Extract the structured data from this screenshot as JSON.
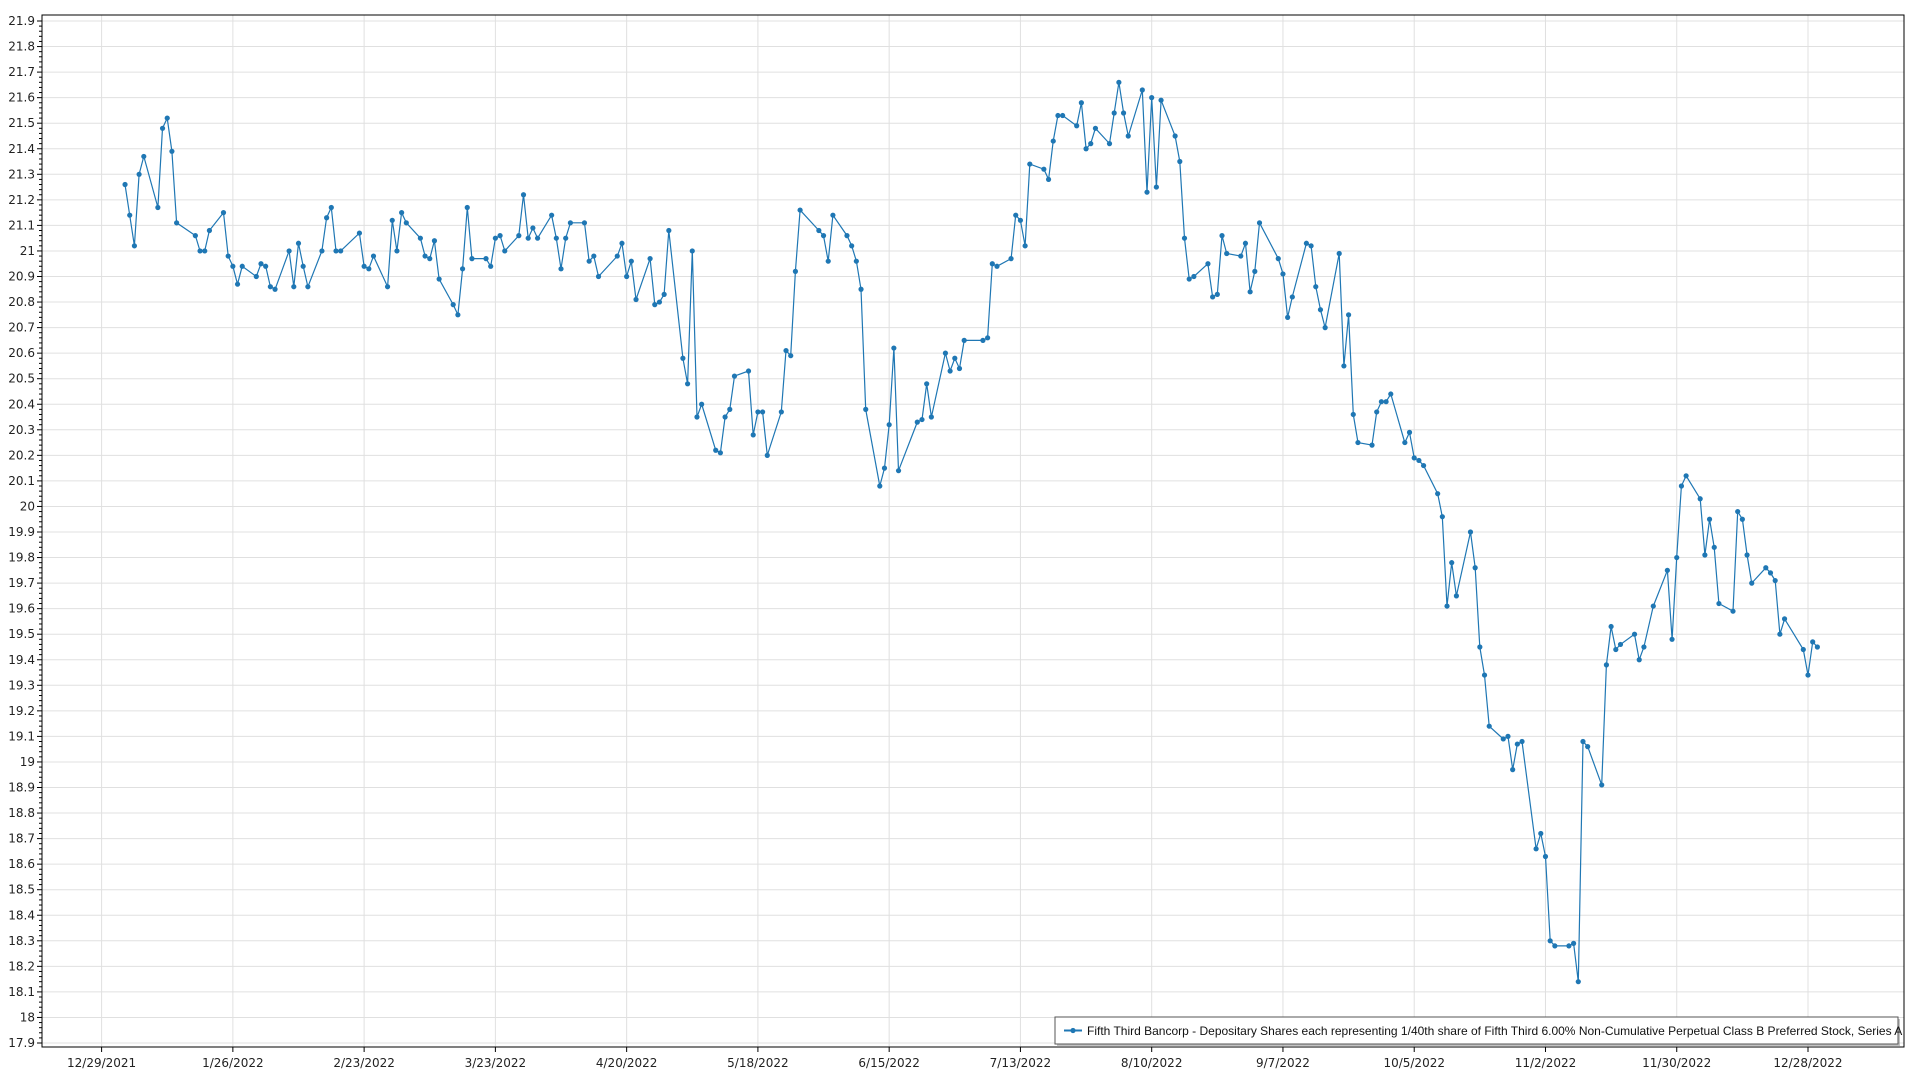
{
  "chart_data": {
    "type": "line",
    "title": "",
    "xlabel": "",
    "ylabel": "",
    "ylim": [
      17.9,
      21.9
    ],
    "y_tick_step": 0.1,
    "x_ticks": [
      "12/29/2021",
      "1/26/2022",
      "2/23/2022",
      "3/23/2022",
      "4/20/2022",
      "5/18/2022",
      "6/15/2022",
      "7/13/2022",
      "8/10/2022",
      "9/7/2022",
      "10/5/2022",
      "11/2/2022",
      "11/30/2022",
      "12/28/2022"
    ],
    "xlim": [
      "12/29/2021",
      "1/18/2023"
    ],
    "grid": true,
    "legend_position": "bottom-right",
    "colors": {
      "series": "#1f77b4",
      "grid": "#e0e0e0",
      "axis": "#000000"
    },
    "series": [
      {
        "name": "Fifth Third Bancorp - Depositary Shares each representing 1/40th share of Fifth Third 6.00% Non-Cumulative Perpetual Class B Preferred Stock, Series A",
        "marker": "circle",
        "points": [
          [
            "1/3/2022",
            21.26
          ],
          [
            "1/4/2022",
            21.14
          ],
          [
            "1/5/2022",
            21.02
          ],
          [
            "1/6/2022",
            21.3
          ],
          [
            "1/7/2022",
            21.37
          ],
          [
            "1/10/2022",
            21.17
          ],
          [
            "1/11/2022",
            21.48
          ],
          [
            "1/12/2022",
            21.52
          ],
          [
            "1/13/2022",
            21.39
          ],
          [
            "1/14/2022",
            21.11
          ],
          [
            "1/18/2022",
            21.06
          ],
          [
            "1/19/2022",
            21.0
          ],
          [
            "1/20/2022",
            21.0
          ],
          [
            "1/21/2022",
            21.08
          ],
          [
            "1/24/2022",
            21.15
          ],
          [
            "1/25/2022",
            20.98
          ],
          [
            "1/26/2022",
            20.94
          ],
          [
            "1/27/2022",
            20.87
          ],
          [
            "1/28/2022",
            20.94
          ],
          [
            "1/31/2022",
            20.9
          ],
          [
            "2/1/2022",
            20.95
          ],
          [
            "2/2/2022",
            20.94
          ],
          [
            "2/3/2022",
            20.86
          ],
          [
            "2/4/2022",
            20.85
          ],
          [
            "2/7/2022",
            21.0
          ],
          [
            "2/8/2022",
            20.86
          ],
          [
            "2/9/2022",
            21.03
          ],
          [
            "2/10/2022",
            20.94
          ],
          [
            "2/11/2022",
            20.86
          ],
          [
            "2/14/2022",
            21.0
          ],
          [
            "2/15/2022",
            21.13
          ],
          [
            "2/16/2022",
            21.17
          ],
          [
            "2/17/2022",
            21.0
          ],
          [
            "2/18/2022",
            21.0
          ],
          [
            "2/22/2022",
            21.07
          ],
          [
            "2/23/2022",
            20.94
          ],
          [
            "2/24/2022",
            20.93
          ],
          [
            "2/25/2022",
            20.98
          ],
          [
            "2/28/2022",
            20.86
          ],
          [
            "3/1/2022",
            21.12
          ],
          [
            "3/2/2022",
            21.0
          ],
          [
            "3/3/2022",
            21.15
          ],
          [
            "3/4/2022",
            21.11
          ],
          [
            "3/7/2022",
            21.05
          ],
          [
            "3/8/2022",
            20.98
          ],
          [
            "3/9/2022",
            20.97
          ],
          [
            "3/10/2022",
            21.04
          ],
          [
            "3/11/2022",
            20.89
          ],
          [
            "3/14/2022",
            20.79
          ],
          [
            "3/15/2022",
            20.75
          ],
          [
            "3/16/2022",
            20.93
          ],
          [
            "3/17/2022",
            21.17
          ],
          [
            "3/18/2022",
            20.97
          ],
          [
            "3/21/2022",
            20.97
          ],
          [
            "3/22/2022",
            20.94
          ],
          [
            "3/23/2022",
            21.05
          ],
          [
            "3/24/2022",
            21.06
          ],
          [
            "3/25/2022",
            21.0
          ],
          [
            "3/28/2022",
            21.06
          ],
          [
            "3/29/2022",
            21.22
          ],
          [
            "3/30/2022",
            21.05
          ],
          [
            "3/31/2022",
            21.09
          ],
          [
            "4/1/2022",
            21.05
          ],
          [
            "4/4/2022",
            21.14
          ],
          [
            "4/5/2022",
            21.05
          ],
          [
            "4/6/2022",
            20.93
          ],
          [
            "4/7/2022",
            21.05
          ],
          [
            "4/8/2022",
            21.11
          ],
          [
            "4/11/2022",
            21.11
          ],
          [
            "4/12/2022",
            20.96
          ],
          [
            "4/13/2022",
            20.98
          ],
          [
            "4/14/2022",
            20.9
          ],
          [
            "4/18/2022",
            20.98
          ],
          [
            "4/19/2022",
            21.03
          ],
          [
            "4/20/2022",
            20.9
          ],
          [
            "4/21/2022",
            20.96
          ],
          [
            "4/22/2022",
            20.81
          ],
          [
            "4/25/2022",
            20.97
          ],
          [
            "4/26/2022",
            20.79
          ],
          [
            "4/27/2022",
            20.8
          ],
          [
            "4/28/2022",
            20.83
          ],
          [
            "4/29/2022",
            21.08
          ],
          [
            "5/2/2022",
            20.58
          ],
          [
            "5/3/2022",
            20.48
          ],
          [
            "5/4/2022",
            21.0
          ],
          [
            "5/5/2022",
            20.35
          ],
          [
            "5/6/2022",
            20.4
          ],
          [
            "5/9/2022",
            20.22
          ],
          [
            "5/10/2022",
            20.21
          ],
          [
            "5/11/2022",
            20.35
          ],
          [
            "5/12/2022",
            20.38
          ],
          [
            "5/13/2022",
            20.51
          ],
          [
            "5/16/2022",
            20.53
          ],
          [
            "5/17/2022",
            20.28
          ],
          [
            "5/18/2022",
            20.37
          ],
          [
            "5/19/2022",
            20.37
          ],
          [
            "5/20/2022",
            20.2
          ],
          [
            "5/23/2022",
            20.37
          ],
          [
            "5/24/2022",
            20.61
          ],
          [
            "5/25/2022",
            20.59
          ],
          [
            "5/26/2022",
            20.92
          ],
          [
            "5/27/2022",
            21.16
          ],
          [
            "5/31/2022",
            21.08
          ],
          [
            "6/1/2022",
            21.06
          ],
          [
            "6/2/2022",
            20.96
          ],
          [
            "6/3/2022",
            21.14
          ],
          [
            "6/6/2022",
            21.06
          ],
          [
            "6/7/2022",
            21.02
          ],
          [
            "6/8/2022",
            20.96
          ],
          [
            "6/9/2022",
            20.85
          ],
          [
            "6/10/2022",
            20.38
          ],
          [
            "6/13/2022",
            20.08
          ],
          [
            "6/14/2022",
            20.15
          ],
          [
            "6/15/2022",
            20.32
          ],
          [
            "6/16/2022",
            20.62
          ],
          [
            "6/17/2022",
            20.14
          ],
          [
            "6/21/2022",
            20.33
          ],
          [
            "6/22/2022",
            20.34
          ],
          [
            "6/23/2022",
            20.48
          ],
          [
            "6/24/2022",
            20.35
          ],
          [
            "6/27/2022",
            20.6
          ],
          [
            "6/28/2022",
            20.53
          ],
          [
            "6/29/2022",
            20.58
          ],
          [
            "6/30/2022",
            20.54
          ],
          [
            "7/1/2022",
            20.65
          ],
          [
            "7/5/2022",
            20.65
          ],
          [
            "7/6/2022",
            20.66
          ],
          [
            "7/7/2022",
            20.95
          ],
          [
            "7/8/2022",
            20.94
          ],
          [
            "7/11/2022",
            20.97
          ],
          [
            "7/12/2022",
            21.14
          ],
          [
            "7/13/2022",
            21.12
          ],
          [
            "7/14/2022",
            21.02
          ],
          [
            "7/15/2022",
            21.34
          ],
          [
            "7/18/2022",
            21.32
          ],
          [
            "7/19/2022",
            21.28
          ],
          [
            "7/20/2022",
            21.43
          ],
          [
            "7/21/2022",
            21.53
          ],
          [
            "7/22/2022",
            21.53
          ],
          [
            "7/25/2022",
            21.49
          ],
          [
            "7/26/2022",
            21.58
          ],
          [
            "7/27/2022",
            21.4
          ],
          [
            "7/28/2022",
            21.42
          ],
          [
            "7/29/2022",
            21.48
          ],
          [
            "8/1/2022",
            21.42
          ],
          [
            "8/2/2022",
            21.54
          ],
          [
            "8/3/2022",
            21.66
          ],
          [
            "8/4/2022",
            21.54
          ],
          [
            "8/5/2022",
            21.45
          ],
          [
            "8/8/2022",
            21.63
          ],
          [
            "8/9/2022",
            21.23
          ],
          [
            "8/10/2022",
            21.6
          ],
          [
            "8/11/2022",
            21.25
          ],
          [
            "8/12/2022",
            21.59
          ],
          [
            "8/15/2022",
            21.45
          ],
          [
            "8/16/2022",
            21.35
          ],
          [
            "8/17/2022",
            21.05
          ],
          [
            "8/18/2022",
            20.89
          ],
          [
            "8/19/2022",
            20.9
          ],
          [
            "8/22/2022",
            20.95
          ],
          [
            "8/23/2022",
            20.82
          ],
          [
            "8/24/2022",
            20.83
          ],
          [
            "8/25/2022",
            21.06
          ],
          [
            "8/26/2022",
            20.99
          ],
          [
            "8/29/2022",
            20.98
          ],
          [
            "8/30/2022",
            21.03
          ],
          [
            "8/31/2022",
            20.84
          ],
          [
            "9/1/2022",
            20.92
          ],
          [
            "9/2/2022",
            21.11
          ],
          [
            "9/6/2022",
            20.97
          ],
          [
            "9/7/2022",
            20.91
          ],
          [
            "9/8/2022",
            20.74
          ],
          [
            "9/9/2022",
            20.82
          ],
          [
            "9/12/2022",
            21.03
          ],
          [
            "9/13/2022",
            21.02
          ],
          [
            "9/14/2022",
            20.86
          ],
          [
            "9/15/2022",
            20.77
          ],
          [
            "9/16/2022",
            20.7
          ],
          [
            "9/19/2022",
            20.99
          ],
          [
            "9/20/2022",
            20.55
          ],
          [
            "9/21/2022",
            20.75
          ],
          [
            "9/22/2022",
            20.36
          ],
          [
            "9/23/2022",
            20.25
          ],
          [
            "9/26/2022",
            20.24
          ],
          [
            "9/27/2022",
            20.37
          ],
          [
            "9/28/2022",
            20.41
          ],
          [
            "9/29/2022",
            20.41
          ],
          [
            "9/30/2022",
            20.44
          ],
          [
            "10/3/2022",
            20.25
          ],
          [
            "10/4/2022",
            20.29
          ],
          [
            "10/5/2022",
            20.19
          ],
          [
            "10/6/2022",
            20.18
          ],
          [
            "10/7/2022",
            20.16
          ],
          [
            "10/10/2022",
            20.05
          ],
          [
            "10/11/2022",
            19.96
          ],
          [
            "10/12/2022",
            19.61
          ],
          [
            "10/13/2022",
            19.78
          ],
          [
            "10/14/2022",
            19.65
          ],
          [
            "10/17/2022",
            19.9
          ],
          [
            "10/18/2022",
            19.76
          ],
          [
            "10/19/2022",
            19.45
          ],
          [
            "10/20/2022",
            19.34
          ],
          [
            "10/21/2022",
            19.14
          ],
          [
            "10/24/2022",
            19.09
          ],
          [
            "10/25/2022",
            19.1
          ],
          [
            "10/26/2022",
            18.97
          ],
          [
            "10/27/2022",
            19.07
          ],
          [
            "10/28/2022",
            19.08
          ],
          [
            "10/31/2022",
            18.66
          ],
          [
            "11/1/2022",
            18.72
          ],
          [
            "11/2/2022",
            18.63
          ],
          [
            "11/3/2022",
            18.3
          ],
          [
            "11/4/2022",
            18.28
          ],
          [
            "11/7/2022",
            18.28
          ],
          [
            "11/8/2022",
            18.29
          ],
          [
            "11/9/2022",
            18.14
          ],
          [
            "11/10/2022",
            19.08
          ],
          [
            "11/11/2022",
            19.06
          ],
          [
            "11/14/2022",
            18.91
          ],
          [
            "11/15/2022",
            19.38
          ],
          [
            "11/16/2022",
            19.53
          ],
          [
            "11/17/2022",
            19.44
          ],
          [
            "11/18/2022",
            19.46
          ],
          [
            "11/21/2022",
            19.5
          ],
          [
            "11/22/2022",
            19.4
          ],
          [
            "11/23/2022",
            19.45
          ],
          [
            "11/25/2022",
            19.61
          ],
          [
            "11/28/2022",
            19.75
          ],
          [
            "11/29/2022",
            19.48
          ],
          [
            "11/30/2022",
            19.8
          ],
          [
            "12/1/2022",
            20.08
          ],
          [
            "12/2/2022",
            20.12
          ],
          [
            "12/5/2022",
            20.03
          ],
          [
            "12/6/2022",
            19.81
          ],
          [
            "12/7/2022",
            19.95
          ],
          [
            "12/8/2022",
            19.84
          ],
          [
            "12/9/2022",
            19.62
          ],
          [
            "12/12/2022",
            19.59
          ],
          [
            "12/13/2022",
            19.98
          ],
          [
            "12/14/2022",
            19.95
          ],
          [
            "12/15/2022",
            19.81
          ],
          [
            "12/16/2022",
            19.7
          ],
          [
            "12/19/2022",
            19.76
          ],
          [
            "12/20/2022",
            19.74
          ],
          [
            "12/21/2022",
            19.71
          ],
          [
            "12/22/2022",
            19.5
          ],
          [
            "12/23/2022",
            19.56
          ],
          [
            "12/27/2022",
            19.44
          ],
          [
            "12/28/2022",
            19.34
          ],
          [
            "12/29/2022",
            19.47
          ],
          [
            "12/30/2022",
            19.45
          ]
        ]
      }
    ]
  }
}
